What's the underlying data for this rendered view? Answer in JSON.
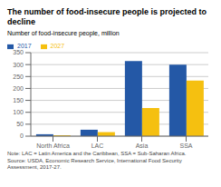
{
  "chart_data": {
    "type": "bar",
    "title": "The number of food-insecure people is projected to decline",
    "ylabel": "Number of food-insecure people, million",
    "categories": [
      "North Africa",
      "LAC",
      "Asia",
      "SSA"
    ],
    "series": [
      {
        "name": "2017",
        "color": "#2458a6",
        "values": [
          8,
          27,
          315,
          300
        ]
      },
      {
        "name": "2027",
        "color": "#f5c010",
        "values": [
          4,
          17,
          118,
          233
        ]
      }
    ],
    "ylim": [
      0,
      350
    ],
    "yticks": [
      0,
      50,
      100,
      150,
      200,
      250,
      300,
      350
    ],
    "grid": true,
    "legend": "upper left",
    "annotations": [
      "Note: LAC = Latin America and the Caribbean, SSA = Sub-Saharan Africa.",
      "Source: USDA, Economic Research Service, International Food Security Assessment, 2017-27."
    ]
  }
}
